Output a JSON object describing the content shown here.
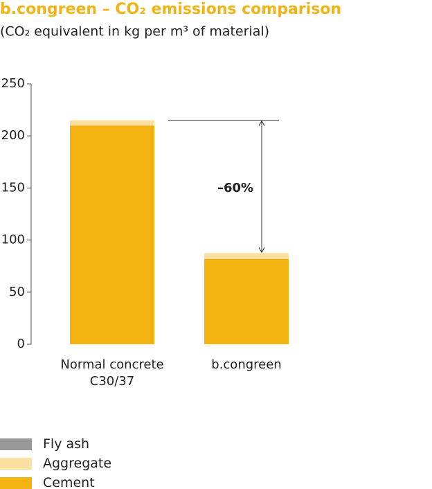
{
  "chart_data": {
    "type": "stacked_bar",
    "title": "b.congreen – CO₂ emissions comparison",
    "subtitle": "(CO₂ equivalent in kg per m³ of material)",
    "annotation": "–60%",
    "categories": [
      "Normal concrete C30/37",
      "b.congreen"
    ],
    "series": [
      {
        "name": "Cement",
        "color": "#f5b312",
        "values": [
          210,
          82
        ]
      },
      {
        "name": "Aggregate",
        "color": "#fce0a0",
        "values": [
          5,
          5.5
        ]
      },
      {
        "name": "Fly ash",
        "color": "#999999",
        "values": [
          0,
          0
        ]
      }
    ],
    "ylim": [
      0,
      250
    ],
    "yticks": [
      0,
      50,
      100,
      150,
      200,
      250
    ]
  }
}
